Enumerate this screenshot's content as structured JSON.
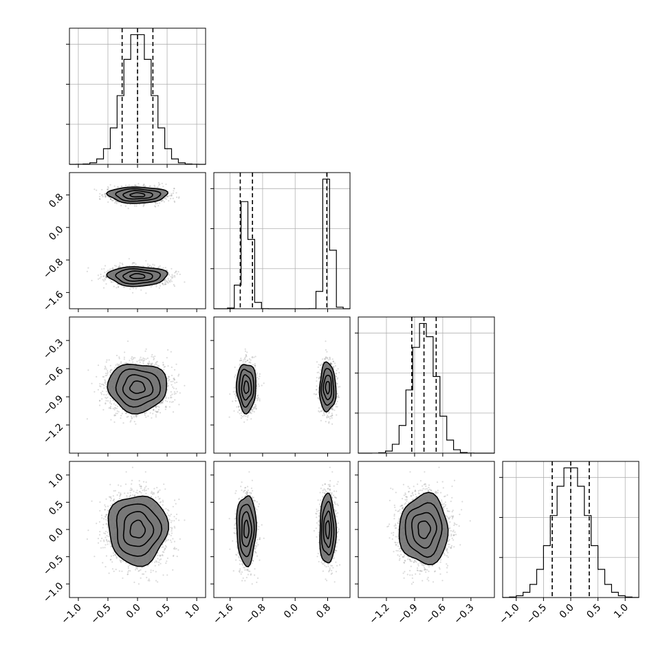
{
  "chart_data": {
    "type": "corner",
    "variables": [
      {
        "id": "p0",
        "range": [
          -1.15,
          1.15
        ],
        "ticks": [
          -1.0,
          -0.5,
          0.0,
          0.5,
          1.0
        ],
        "tick_labels": [
          "−1.0",
          "−0.5",
          "0.0",
          "0.5",
          "1.0"
        ]
      },
      {
        "id": "p1",
        "range": [
          -2.0,
          1.35
        ],
        "ticks": [
          -1.6,
          -0.8,
          0.0,
          0.8
        ],
        "tick_labels": [
          "−1.6",
          "−0.8",
          "0.0",
          "0.8"
        ]
      },
      {
        "id": "p2",
        "range": [
          -1.5,
          -0.05
        ],
        "ticks": [
          -1.2,
          -0.9,
          -0.6,
          -0.3
        ],
        "tick_labels": [
          "−1.2",
          "−0.9",
          "−0.6",
          "−0.3"
        ]
      },
      {
        "id": "p3",
        "range": [
          -1.25,
          1.25
        ],
        "ticks": [
          -1.0,
          -0.5,
          0.0,
          0.5,
          1.0
        ],
        "tick_labels": [
          "−1.0",
          "−0.5",
          "0.0",
          "0.5",
          "1.0"
        ]
      }
    ],
    "distributions": [
      {
        "components": [
          {
            "mu": 0.0,
            "sigma": 0.25,
            "w": 1.0
          }
        ]
      },
      {
        "components": [
          {
            "mu": -1.2,
            "sigma": 0.12,
            "w": 0.5
          },
          {
            "mu": 0.8,
            "sigma": 0.1,
            "w": 0.5
          }
        ]
      },
      {
        "components": [
          {
            "mu": -0.8,
            "sigma": 0.13,
            "w": 1.0
          }
        ]
      },
      {
        "components": [
          {
            "mu": 0.0,
            "sigma": 0.32,
            "w": 1.0
          }
        ]
      }
    ],
    "histograms": [
      {
        "bins": 20,
        "quantiles": [
          -0.26,
          0.0,
          0.26
        ]
      },
      {
        "bins": 20,
        "quantiles": [
          -1.35,
          -1.05,
          0.78
        ]
      },
      {
        "bins": 20,
        "quantiles": [
          -0.93,
          -0.8,
          -0.67
        ]
      },
      {
        "bins": 20,
        "quantiles": [
          -0.34,
          0.0,
          0.34
        ]
      }
    ],
    "contour_levels": [
      0.118,
      0.393,
      0.675,
      0.864
    ],
    "grid": true,
    "color": "#000000",
    "scatter_color": "#7f7f7f"
  }
}
